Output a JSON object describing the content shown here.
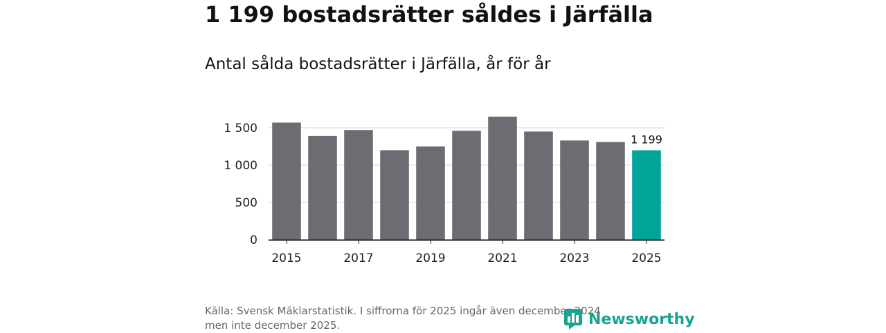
{
  "headline": "1 199 bostadsrätter såldes i Järfälla",
  "subtitle": "Antal sålda bostadsrätter i Järfälla, år för år",
  "source_line1": "Källa: Svensk Mäklarstatistik. I siffrorna för 2025 ingår även december 2024",
  "source_line2": "men inte december 2025.",
  "brand": "Newsworthy",
  "colors": {
    "bar": "#6d6c72",
    "highlight": "#00a499",
    "grid": "#d9d9d9",
    "axis": "#222222",
    "brand": "#1aa38f"
  },
  "chart_data": {
    "type": "bar",
    "title": "Antal sålda bostadsrätter i Järfälla, år för år",
    "xlabel": "",
    "ylabel": "",
    "categories": [
      "2015",
      "2016",
      "2017",
      "2018",
      "2019",
      "2020",
      "2021",
      "2022",
      "2023",
      "2024",
      "2025"
    ],
    "values": [
      1570,
      1390,
      1470,
      1200,
      1250,
      1460,
      1650,
      1450,
      1330,
      1310,
      1199
    ],
    "highlight_index": 10,
    "data_labels": [
      {
        "category": "2025",
        "text": "1 199"
      }
    ],
    "ylim": [
      0,
      1750
    ],
    "yticks": [
      0,
      500,
      1000,
      1500
    ],
    "ytick_labels": [
      "0",
      "500",
      "1 000",
      "1 500"
    ],
    "xtick_labels": [
      "2015",
      "2017",
      "2019",
      "2021",
      "2023",
      "2025"
    ],
    "grid": true
  }
}
